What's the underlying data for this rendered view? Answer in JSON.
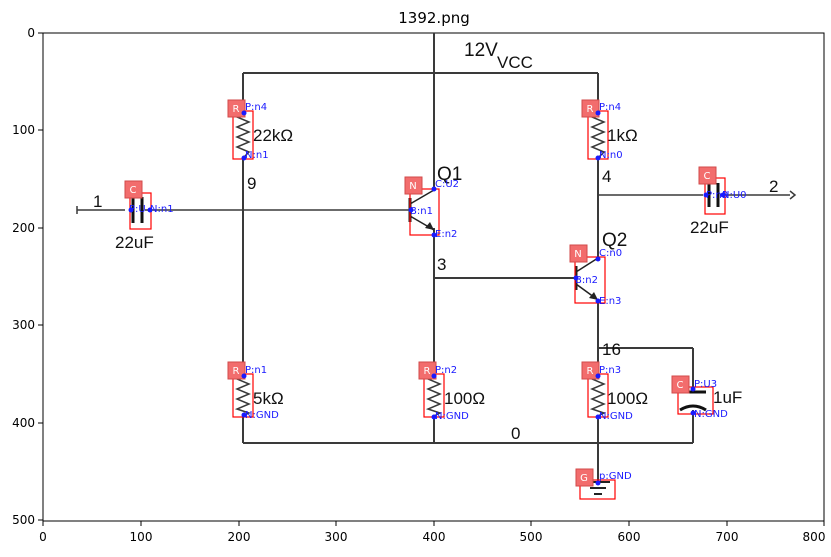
{
  "figure": {
    "title": "1392.png",
    "x_ticks": [
      "0",
      "100",
      "200",
      "300",
      "400",
      "500",
      "600",
      "700",
      "800"
    ],
    "y_ticks": [
      "0",
      "100",
      "200",
      "300",
      "400",
      "500"
    ]
  },
  "circuit": {
    "supply_label": "12V",
    "supply_sub": "VCC",
    "ground_node": "0",
    "input_node": "1",
    "output_node": "2",
    "node_9": "9",
    "node_4": "4",
    "node_3": "3",
    "node_16": "16",
    "q1_label": "Q1",
    "q2_label": "Q2",
    "r_22k": "22kΩ",
    "r_1k": "1kΩ",
    "r_5k": "5kΩ",
    "r_100a": "100Ω",
    "r_100b": "100Ω",
    "c_in": "22uF",
    "c_out": "22uF",
    "c_bypass": "1uF"
  },
  "annotations": {
    "r1_tag": "R",
    "r1_p": "P:n4",
    "r1_n": "N:n1",
    "r2_tag": "R",
    "r2_p": "P:n4",
    "r2_n": "N:n0",
    "c1_tag": "C",
    "c1_p": "P:U",
    "c1_n": "N:n1",
    "c2_tag": "C",
    "c2_p": "P:n0",
    "c2_n": "N:U0",
    "q1_tag": "N",
    "q1_c": "C:U2",
    "q1_b": "B:n1",
    "q1_e": "E:n2",
    "q2_tag": "N",
    "q2_c": "C:n0",
    "q2_b": "B:n2",
    "q2_e": "E:n3",
    "r3_tag": "R",
    "r3_p": "P:n1",
    "r3_n": "N:GND",
    "r4_tag": "R",
    "r4_p": "P:n2",
    "r4_n": "N:GND",
    "r5_tag": "R",
    "r5_p": "P:n3",
    "r5_n": "N:GND",
    "c3_tag": "C",
    "c3_p": "P:U3",
    "c3_n": "N:GND",
    "gnd_tag": "G",
    "gnd_p": "p:GND"
  }
}
